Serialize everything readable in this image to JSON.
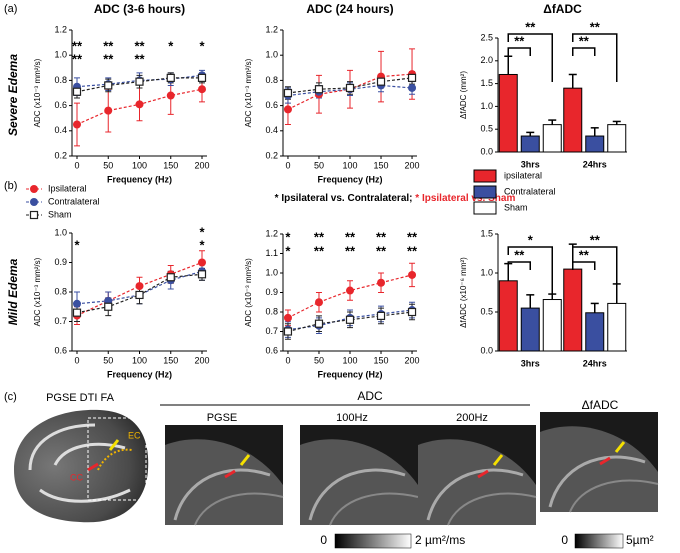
{
  "panel_labels": [
    "(a)",
    "(b)",
    "(c)"
  ],
  "row_labels": [
    "Severe Edema",
    "Mild Edema"
  ],
  "significance_legend": [
    {
      "text": "* Ipsilateral vs. Contralateral; ",
      "color": "#000000"
    },
    {
      "text": "* Ipsilateral vs. Sham",
      "color": "#e8262c"
    }
  ],
  "chart_data": [
    {
      "type": "line",
      "title": "ADC (3-6 hours)",
      "x_label": "Frequency (Hz)",
      "y_label": "ADC (x10⁻³ mm²/s)",
      "x": [
        0,
        50,
        100,
        150,
        200
      ],
      "xlim": [
        -8,
        208
      ],
      "xticks": [
        0,
        50,
        100,
        150,
        200
      ],
      "ylim": [
        0.2,
        1.2
      ],
      "yticks": [
        0.2,
        0.4,
        0.6,
        0.8,
        {
          "value": 1,
          "label": "1.0"
        },
        1.2
      ],
      "series": [
        {
          "name": "Ipsilateral",
          "color": "#e8262c",
          "marker": "circle",
          "values": [
            0.45,
            0.56,
            0.61,
            0.68,
            0.73
          ],
          "errors": [
            0.17,
            0.17,
            0.13,
            0.15,
            0.1
          ]
        },
        {
          "name": "Contralateral",
          "color": "#3a4fa0",
          "marker": "circle",
          "values": [
            0.75,
            0.77,
            0.8,
            0.81,
            0.84
          ],
          "errors": [
            0.07,
            0.05,
            0.06,
            0.05,
            0.04
          ]
        },
        {
          "name": "Sham",
          "color": "#222222",
          "marker": "open-square",
          "values": [
            0.71,
            0.76,
            0.79,
            0.82,
            0.82
          ],
          "errors": [
            0.05,
            0.05,
            0.05,
            0.04,
            0.04
          ]
        }
      ],
      "significance": [
        {
          "color": "#e8262c",
          "labels": [
            "**",
            "**",
            "**",
            "*",
            "*"
          ]
        },
        {
          "color": "#222222",
          "labels": [
            "**",
            "**",
            "**",
            null,
            null
          ]
        }
      ]
    },
    {
      "type": "line",
      "title": "ADC (24 hours)",
      "x_label": "Frequency (Hz)",
      "y_label": "ADC (x10⁻³ mm²/s)",
      "x": [
        0,
        50,
        100,
        150,
        200
      ],
      "xlim": [
        -8,
        208
      ],
      "xticks": [
        0,
        50,
        100,
        150,
        200
      ],
      "ylim": [
        0.2,
        1.2
      ],
      "yticks": [
        0.2,
        0.4,
        0.6,
        0.8,
        {
          "value": 1,
          "label": "1.0"
        },
        1.2
      ],
      "series": [
        {
          "color": "#e8262c",
          "marker": "circle",
          "values": [
            0.57,
            0.69,
            0.73,
            0.83,
            0.85
          ],
          "errors": [
            0.12,
            0.15,
            0.15,
            0.2,
            0.2
          ]
        },
        {
          "color": "#3a4fa0",
          "marker": "circle",
          "values": [
            0.68,
            0.71,
            0.73,
            0.76,
            0.74
          ],
          "errors": [
            0.06,
            0.05,
            0.05,
            0.05,
            0.05
          ]
        },
        {
          "color": "#222222",
          "marker": "open-square",
          "values": [
            0.7,
            0.73,
            0.74,
            0.79,
            0.82
          ],
          "errors": [
            0.05,
            0.05,
            0.05,
            0.05,
            0.05
          ]
        }
      ]
    },
    {
      "type": "bar",
      "title": "ΔfADC",
      "y_label": "ΔfADC (mm²)",
      "categories": [
        "3hrs",
        "24hrs"
      ],
      "ylim": [
        0,
        2.5
      ],
      "yticks": [
        {
          "value": 0,
          "label": "0.0"
        },
        0.5,
        {
          "value": 1,
          "label": "1.0"
        },
        1.5,
        {
          "value": 2,
          "label": "2.0"
        },
        2.5
      ],
      "series": [
        {
          "name": "ipsilateral",
          "color": "#e8262c",
          "values": [
            1.7,
            1.4
          ],
          "errors": [
            0.4,
            0.3
          ]
        },
        {
          "name": "Contralateral",
          "color": "#3a4fa0",
          "values": [
            0.35,
            0.35
          ],
          "errors": [
            0.08,
            0.18
          ]
        },
        {
          "name": "Sham",
          "color": "#ffffff",
          "values": [
            0.6,
            0.6
          ],
          "errors": [
            0.1,
            0.07
          ]
        }
      ],
      "significance": [
        [
          "**",
          "**"
        ],
        [
          "**",
          "**"
        ]
      ]
    },
    {
      "type": "line",
      "x_label": "Frequency (Hz)",
      "y_label": "ADC (x10⁻³ mm²/s)",
      "x": [
        0,
        50,
        100,
        150,
        200
      ],
      "xlim": [
        -8,
        208
      ],
      "xticks": [
        0,
        50,
        100,
        150,
        200
      ],
      "ylim": [
        0.6,
        1
      ],
      "yticks": [
        0.6,
        0.7,
        0.8,
        0.9,
        {
          "value": 1,
          "label": "1.0"
        }
      ],
      "series": [
        {
          "color": "#e8262c",
          "marker": "circle",
          "values": [
            0.72,
            0.77,
            0.82,
            0.86,
            0.9
          ],
          "errors": [
            0.03,
            0.03,
            0.03,
            0.03,
            0.04
          ]
        },
        {
          "color": "#3a4fa0",
          "marker": "circle",
          "values": [
            0.76,
            0.77,
            0.79,
            0.84,
            0.87
          ],
          "errors": [
            0.04,
            0.03,
            0.03,
            0.03,
            0.03
          ]
        },
        {
          "color": "#222222",
          "marker": "open-square",
          "values": [
            0.73,
            0.75,
            0.79,
            0.85,
            0.86
          ],
          "errors": [
            0.03,
            0.03,
            0.03,
            0.02,
            0.02
          ]
        }
      ],
      "significance": [
        {
          "color": "#e8262c",
          "labels": [
            null,
            null,
            null,
            null,
            "*"
          ]
        },
        {
          "color": "#222222",
          "labels": [
            "*",
            null,
            null,
            null,
            "*"
          ]
        }
      ]
    },
    {
      "type": "line",
      "x_label": "Frequency (Hz)",
      "y_label": "ADC (x10⁻³ mm²/s)",
      "x": [
        0,
        50,
        100,
        150,
        200
      ],
      "xlim": [
        -8,
        208
      ],
      "xticks": [
        0,
        50,
        100,
        150,
        200
      ],
      "ylim": [
        0.6,
        1.2
      ],
      "yticks": [
        0.6,
        0.7,
        0.8,
        0.9,
        {
          "value": 1,
          "label": "1.0"
        },
        1.1,
        1.2
      ],
      "series": [
        {
          "color": "#e8262c",
          "marker": "circle",
          "values": [
            0.77,
            0.85,
            0.91,
            0.95,
            0.99
          ],
          "errors": [
            0.04,
            0.05,
            0.05,
            0.05,
            0.06
          ]
        },
        {
          "color": "#3a4fa0",
          "marker": "circle",
          "values": [
            0.71,
            0.73,
            0.77,
            0.79,
            0.81
          ],
          "errors": [
            0.04,
            0.04,
            0.04,
            0.04,
            0.04
          ]
        },
        {
          "color": "#222222",
          "marker": "open-square",
          "values": [
            0.7,
            0.74,
            0.76,
            0.78,
            0.8
          ],
          "errors": [
            0.04,
            0.04,
            0.04,
            0.04,
            0.04
          ]
        }
      ],
      "significance": [
        {
          "color": "#e8262c",
          "labels": [
            "*",
            "**",
            "**",
            "**",
            "**"
          ]
        },
        {
          "color": "#222222",
          "labels": [
            "*",
            "**",
            "**",
            "**",
            "**"
          ]
        }
      ]
    },
    {
      "type": "bar",
      "y_label": "ΔfADC (x10⁻⁶ mm²)",
      "categories": [
        "3hrs",
        "24hrs"
      ],
      "ylim": [
        0,
        1.5
      ],
      "yticks": [
        {
          "value": 0,
          "label": "0.0"
        },
        0.5,
        {
          "value": 1,
          "label": "1.0"
        },
        1.5
      ],
      "series": [
        {
          "color": "#e8262c",
          "values": [
            0.9,
            1.05
          ],
          "errors": [
            0.22,
            0.32
          ]
        },
        {
          "color": "#3a4fa0",
          "values": [
            0.55,
            0.49
          ],
          "errors": [
            0.17,
            0.12
          ]
        },
        {
          "color": "#ffffff",
          "values": [
            0.66,
            0.61
          ],
          "errors": [
            0.07,
            0.25
          ]
        }
      ],
      "significance": [
        [
          "**",
          "*"
        ],
        [
          "**",
          "**"
        ]
      ]
    }
  ],
  "figure_c": {
    "fa_title": "PGSE DTI FA",
    "ec": "EC",
    "cc": "CC",
    "adc_title": "ADC",
    "adc_panels": [
      "PGSE",
      "100Hz",
      "200Hz"
    ],
    "delta_title": "ΔfADC",
    "colorbar_adc": [
      "0",
      "2 µm²/ms"
    ],
    "colorbar_delta": [
      "0",
      "5µm²"
    ]
  }
}
